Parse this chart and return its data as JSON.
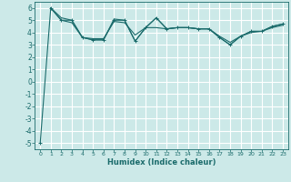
{
  "xlabel": "Humidex (Indice chaleur)",
  "ylabel": "",
  "bg_color": "#cce9e8",
  "line_color": "#1a6b6b",
  "grid_color": "#ffffff",
  "xlim": [
    -0.5,
    23.5
  ],
  "ylim": [
    -5.5,
    6.5
  ],
  "xticks": [
    0,
    1,
    2,
    3,
    4,
    5,
    6,
    7,
    8,
    9,
    10,
    11,
    12,
    13,
    14,
    15,
    16,
    17,
    18,
    19,
    20,
    21,
    22,
    23
  ],
  "yticks": [
    -5,
    -4,
    -3,
    -2,
    -1,
    0,
    1,
    2,
    3,
    4,
    5,
    6
  ],
  "line1_x": [
    0,
    1,
    2,
    3,
    4,
    5,
    6,
    7,
    8,
    9,
    10,
    11,
    12,
    13,
    14,
    15,
    16,
    17,
    18,
    19,
    20,
    21,
    22,
    23
  ],
  "line1_y": [
    -5.0,
    6.0,
    5.0,
    5.0,
    3.6,
    3.4,
    3.4,
    5.0,
    5.0,
    3.3,
    4.4,
    5.2,
    4.3,
    4.4,
    4.4,
    4.3,
    4.3,
    3.6,
    3.0,
    3.7,
    4.1,
    4.1,
    4.5,
    4.7
  ],
  "line2_x": [
    1,
    2,
    3,
    4,
    5,
    6,
    7,
    8,
    9,
    10,
    11,
    12,
    13,
    14,
    15,
    16,
    17,
    18,
    19,
    20,
    21,
    22,
    23
  ],
  "line2_y": [
    6.0,
    5.2,
    5.0,
    3.6,
    3.4,
    3.4,
    5.1,
    5.0,
    3.3,
    4.4,
    5.2,
    4.3,
    4.4,
    4.4,
    4.3,
    4.3,
    3.6,
    3.0,
    3.7,
    4.1,
    4.1,
    4.5,
    4.7
  ],
  "line3_x": [
    1,
    2,
    3,
    4,
    5,
    6,
    7,
    8,
    9,
    10,
    11,
    12,
    13,
    14,
    15,
    16,
    17,
    18,
    19,
    20,
    21,
    22,
    23
  ],
  "line3_y": [
    6.0,
    5.0,
    4.8,
    3.6,
    3.5,
    3.5,
    4.9,
    4.8,
    3.8,
    4.4,
    4.4,
    4.3,
    4.4,
    4.4,
    4.3,
    4.3,
    3.7,
    3.2,
    3.7,
    4.0,
    4.1,
    4.4,
    4.6
  ],
  "xlabel_fontsize": 6.0,
  "tick_fontsize_x": 4.5,
  "tick_fontsize_y": 5.5
}
